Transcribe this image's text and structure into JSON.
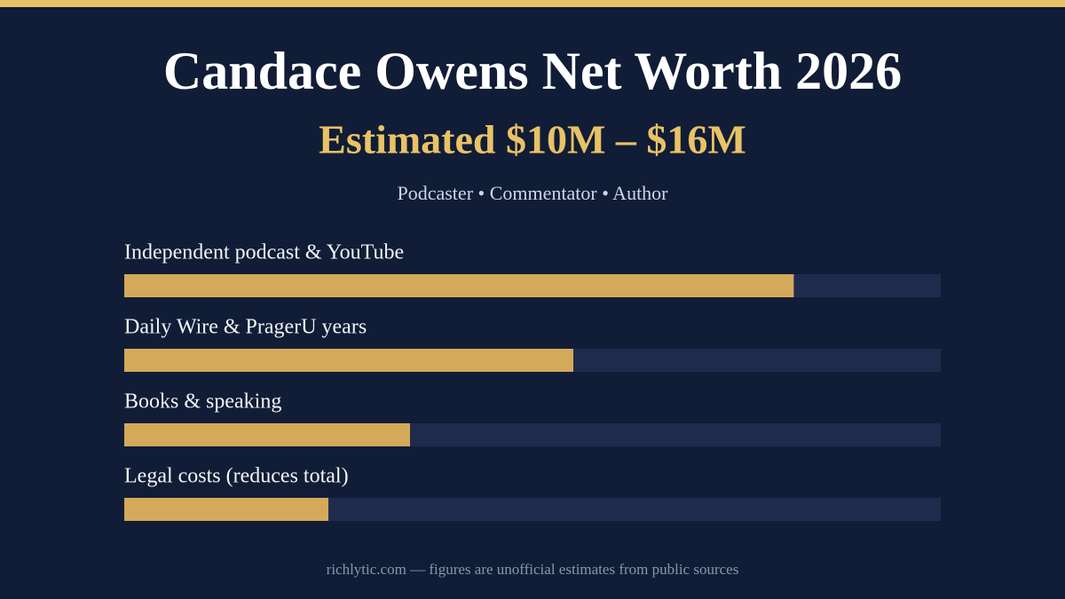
{
  "chart_data": {
    "type": "bar",
    "orientation": "horizontal",
    "title": "Candace Owens Net Worth 2026",
    "subtitle": "Estimated $10M – $16M",
    "tagline": "Podcaster • Commentator • Author",
    "categories": [
      "Independent podcast & YouTube",
      "Daily Wire & PragerU years",
      "Books & speaking",
      "Legal costs (reduces total)"
    ],
    "values": [
      82,
      55,
      35,
      25
    ],
    "color": "#d4a95a",
    "track_color": "#1e2b4d",
    "xlim": [
      0,
      100
    ],
    "footer": "richlytic.com — figures are unofficial estimates from public sources"
  }
}
